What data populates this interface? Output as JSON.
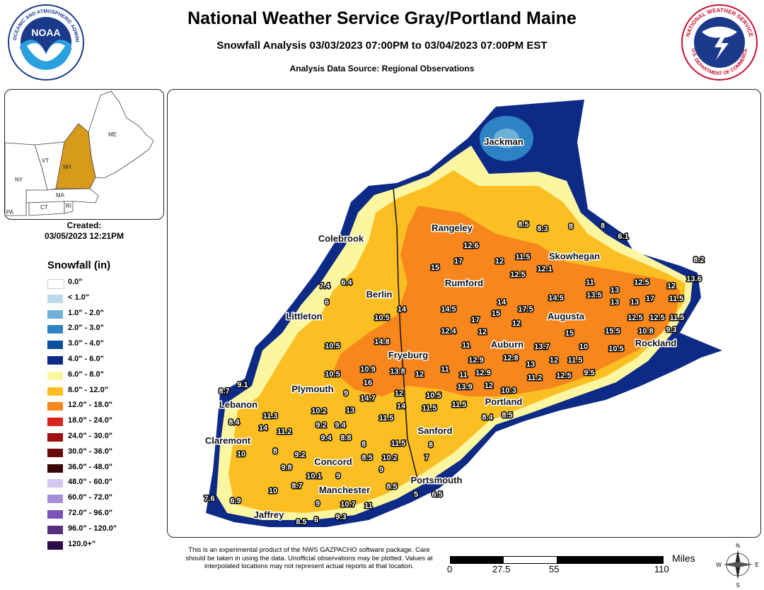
{
  "header": {
    "title": "National Weather Service Gray/Portland Maine",
    "subtitle": "Snowfall Analysis 03/03/2023 07:00PM to 03/04/2023 07:00PM EST",
    "source": "Analysis Data Source: Regional Observations"
  },
  "logos": {
    "noaa_center": "NOAA",
    "noaa_ring": "NATIONAL OCEANIC AND ATMOSPHERIC ADMINISTRATION",
    "noaa_ring_bottom": "U.S. DEPARTMENT OF COMMERCE",
    "nws_ring": "NATIONAL WEATHER SERVICE",
    "nws_ring_bottom": "U.S. DEPARTMENT OF COMMERCE"
  },
  "inset": {
    "states": [
      "ME",
      "VT",
      "NH",
      "NY",
      "MA",
      "CT",
      "RI",
      "PA"
    ],
    "highlight_color": "#d89a1a",
    "created_label": "Created:",
    "created_value": "03/05/2023 12:21PM"
  },
  "legend": {
    "title": "Snowfall (in)",
    "items": [
      {
        "label": "0.0\"",
        "color": "#ffffff"
      },
      {
        "label": "< 1.0\"",
        "color": "#bcd9ea"
      },
      {
        "label": "1.0\" - 2.0\"",
        "color": "#6fb0d8"
      },
      {
        "label": "2.0\" - 3.0\"",
        "color": "#2e83c5"
      },
      {
        "label": "3.0\" - 4.0\"",
        "color": "#0b4fa0"
      },
      {
        "label": "4.0\" - 6.0\"",
        "color": "#0c2a86"
      },
      {
        "label": "6.0\" - 8.0\"",
        "color": "#fdf6a0"
      },
      {
        "label": "8.0\" - 12.0\"",
        "color": "#fbbf24"
      },
      {
        "label": "12.0\" - 18.0\"",
        "color": "#f7861c"
      },
      {
        "label": "18.0\" - 24.0\"",
        "color": "#d9231c"
      },
      {
        "label": "24.0\" - 30.0\"",
        "color": "#9e0f12"
      },
      {
        "label": "30.0\" - 36.0\"",
        "color": "#6a0a0a"
      },
      {
        "label": "36.0\" - 48.0\"",
        "color": "#3a0505"
      },
      {
        "label": "48.0\" - 60.0\"",
        "color": "#d4c8f0"
      },
      {
        "label": "60.0\" - 72.0\"",
        "color": "#a58fdb"
      },
      {
        "label": "72.0\" - 96.0\"",
        "color": "#7a53b8"
      },
      {
        "label": "96.0\" - 120.0\"",
        "color": "#56307e"
      },
      {
        "label": "120.0+\"",
        "color": "#2e0c45"
      }
    ]
  },
  "cities": [
    "Jackman",
    "Rangeley",
    "Skowhegan",
    "Colebrook",
    "Rumford",
    "Berlin",
    "Augusta",
    "Littleton",
    "Auburn",
    "Rockland",
    "Fryeburg",
    "Plymouth",
    "Lebanon",
    "Portland",
    "Sanford",
    "Claremont",
    "Concord",
    "Portsmouth",
    "Manchester",
    "Jaffrey"
  ],
  "observations": [
    "8.2",
    "8.5",
    "8.3",
    "8",
    "8",
    "6.1",
    "12.6",
    "11.5",
    "17",
    "15",
    "12",
    "12.1",
    "12.5",
    "13.6",
    "12",
    "11",
    "12.5",
    "13",
    "7.4",
    "6.4",
    "6",
    "13.5",
    "14.5",
    "13",
    "13",
    "17",
    "11.5",
    "14",
    "10.5",
    "14.5",
    "14",
    "17.5",
    "15",
    "12",
    "15",
    "17",
    "12.5",
    "12.5",
    "11.5",
    "9.3",
    "12.4",
    "12",
    "10.8",
    "14.8",
    "11",
    "13.7",
    "10",
    "15.5",
    "10.5",
    "10.5",
    "12.9",
    "12.8",
    "13",
    "12",
    "11.5",
    "9.5",
    "10.5",
    "10.9",
    "13.8",
    "12",
    "11",
    "11",
    "12.9",
    "11.2",
    "12.5",
    "9.1",
    "8.7",
    "16",
    "13.9",
    "12",
    "10.3",
    "9",
    "14.7",
    "12",
    "14",
    "10.5",
    "11.5",
    "11.5",
    "8.4",
    "8.5",
    "11.3",
    "10.2",
    "13",
    "11.5",
    "8.4",
    "9.2",
    "9.4",
    "14",
    "11.2",
    "9.4",
    "8.8",
    "8",
    "8",
    "11.5",
    "10",
    "8",
    "9.2",
    "8.5",
    "10.2",
    "7",
    "9.8",
    "10.1",
    "9",
    "9",
    "8.7",
    "10",
    "8.5",
    "7.6",
    "6.9",
    "9",
    "10.7",
    "11",
    "5",
    "6.5",
    "8.5",
    "6",
    "9.3"
  ],
  "disclaimer": "This is an experimental product of the NWS GAZPACHO software package. Care should be taken in using the data. Unofficial observations may be plotted. Values at interpolated locations may not represent actual reports at that location.",
  "scalebar": {
    "unit": "Miles",
    "ticks": [
      "0",
      "27.5",
      "55",
      "110"
    ]
  },
  "compass": {
    "n": "N",
    "s": "S",
    "e": "E",
    "w": "W"
  }
}
